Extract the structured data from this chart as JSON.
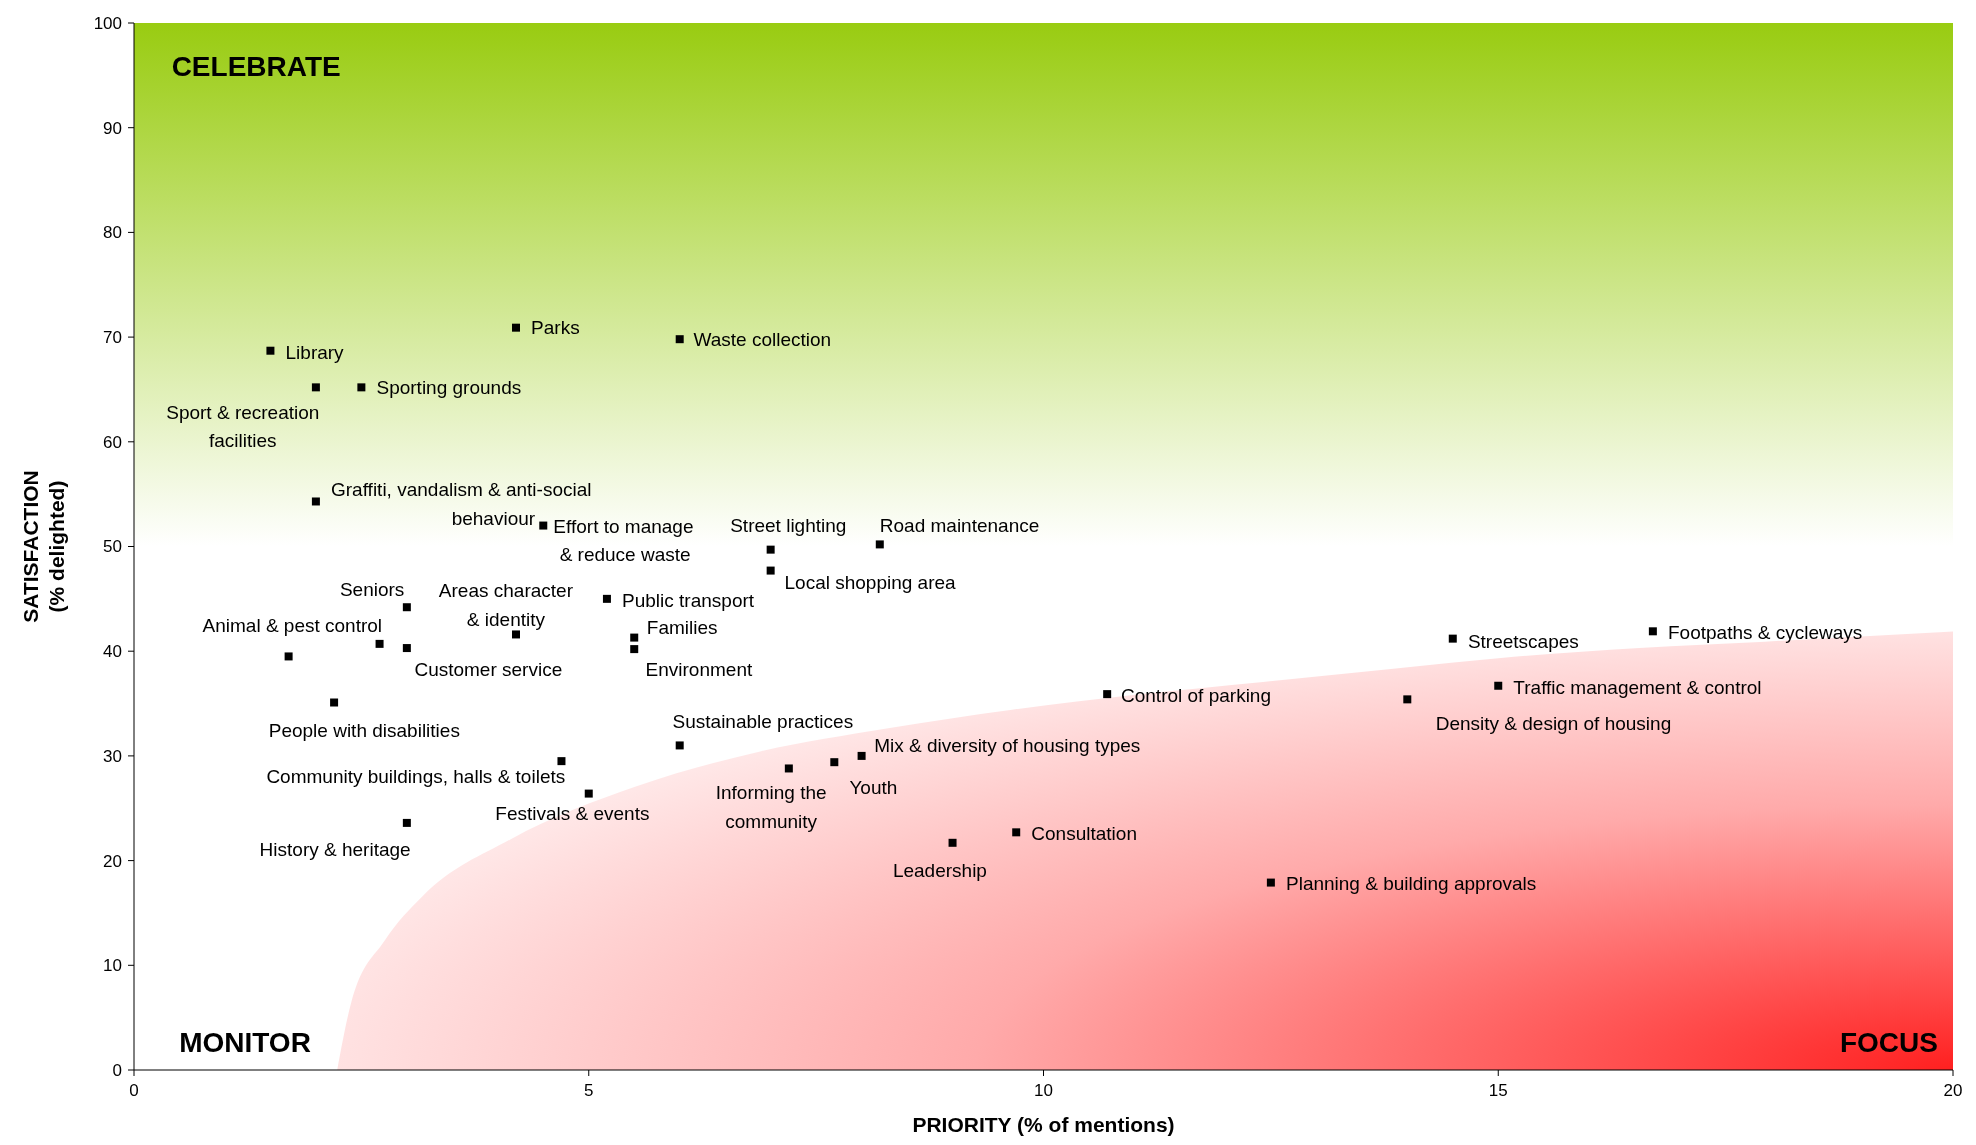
{
  "chart_data": {
    "type": "scatter",
    "xlabel": "PRIORITY (% of mentions)",
    "ylabel": "SATISFACTION\n(% delighted)",
    "xlim": [
      0,
      20
    ],
    "xticks": [
      0,
      5,
      10,
      15,
      20
    ],
    "ylim": [
      0,
      100
    ],
    "yticks": [
      0,
      10,
      20,
      30,
      40,
      50,
      60,
      70,
      80,
      90,
      100
    ],
    "marker": "square",
    "series": [
      {
        "color": "#000000",
        "x": [
          1.5,
          2.0,
          2.5,
          4.2,
          6.0,
          2.0,
          4.5,
          7.0,
          7.0,
          8.2,
          5.2,
          5.5,
          5.5,
          3.0,
          4.2,
          3.0,
          2.7,
          1.7,
          2.2,
          4.7,
          5.0,
          3.0,
          6.0,
          7.2,
          7.7,
          8.0,
          9.0,
          9.7,
          10.7,
          12.5,
          14.0,
          14.5,
          15.0,
          16.7
        ],
        "values": [
          68.7,
          65.2,
          65.2,
          70.9,
          69.8,
          54.3,
          52.0,
          49.7,
          47.7,
          50.2,
          45.0,
          41.3,
          40.2,
          44.2,
          41.6,
          40.3,
          40.7,
          39.5,
          35.1,
          29.5,
          26.4,
          23.6,
          31.0,
          28.8,
          29.4,
          30.0,
          21.7,
          22.7,
          35.9,
          17.9,
          35.4,
          41.2,
          36.7,
          41.9
        ]
      }
    ],
    "annotations": [
      "CELEBRATE",
      "MONITOR",
      "FOCUS",
      {
        "text": "Library",
        "x": 1.5,
        "y": 68.7
      },
      {
        "text": "Sport & recreation\nfacilities",
        "x": 2.0,
        "y": 65.2
      },
      {
        "text": "Sporting grounds",
        "x": 2.5,
        "y": 65.2
      },
      {
        "text": "Parks",
        "x": 4.2,
        "y": 70.9
      },
      {
        "text": "Waste collection",
        "x": 6.0,
        "y": 69.8
      },
      {
        "text": "Graffiti, vandalism & anti-social\nbehaviour",
        "x": 2.0,
        "y": 54.3
      },
      {
        "text": "Effort to manage\n& reduce waste",
        "x": 4.5,
        "y": 52.0
      },
      {
        "text": "Street lighting",
        "x": 7.0,
        "y": 49.7
      },
      {
        "text": "Local shopping area",
        "x": 7.0,
        "y": 47.7
      },
      {
        "text": "Road maintenance",
        "x": 8.2,
        "y": 50.2
      },
      {
        "text": "Public transport",
        "x": 5.2,
        "y": 45.0
      },
      {
        "text": "Families",
        "x": 5.5,
        "y": 41.3
      },
      {
        "text": "Environment",
        "x": 5.5,
        "y": 40.2
      },
      {
        "text": "Seniors",
        "x": 3.0,
        "y": 44.2
      },
      {
        "text": "Areas character\n& identity",
        "x": 4.2,
        "y": 41.6
      },
      {
        "text": "Customer service",
        "x": 3.0,
        "y": 40.3
      },
      {
        "text": "Animal & pest control",
        "x": 2.7,
        "y": 40.7
      },
      {
        "text": "People with disabilities",
        "x": 2.2,
        "y": 35.1
      },
      {
        "text": "Community buildings, halls & toilets",
        "x": 4.7,
        "y": 29.5
      },
      {
        "text": "Festivals & events",
        "x": 5.0,
        "y": 26.4
      },
      {
        "text": "History & heritage",
        "x": 3.0,
        "y": 23.6
      },
      {
        "text": "Sustainable practices",
        "x": 6.0,
        "y": 31.0
      },
      {
        "text": "Informing the\ncommunity",
        "x": 7.2,
        "y": 28.8
      },
      {
        "text": "Youth",
        "x": 7.7,
        "y": 29.4
      },
      {
        "text": "Mix & diversity of housing types",
        "x": 8.0,
        "y": 30.0
      },
      {
        "text": "Leadership",
        "x": 9.0,
        "y": 21.7
      },
      {
        "text": "Consultation",
        "x": 9.7,
        "y": 22.7
      },
      {
        "text": "Control of parking",
        "x": 10.7,
        "y": 35.9
      },
      {
        "text": "Planning & building approvals",
        "x": 12.5,
        "y": 17.9
      },
      {
        "text": "Density & design of housing",
        "x": 14.0,
        "y": 35.4
      },
      {
        "text": "Streetscapes",
        "x": 14.5,
        "y": 41.2
      },
      {
        "text": "Traffic management & control",
        "x": 15.0,
        "y": 36.7
      },
      {
        "text": "Footpaths & cycleways",
        "x": 16.7,
        "y": 41.9
      }
    ]
  }
}
